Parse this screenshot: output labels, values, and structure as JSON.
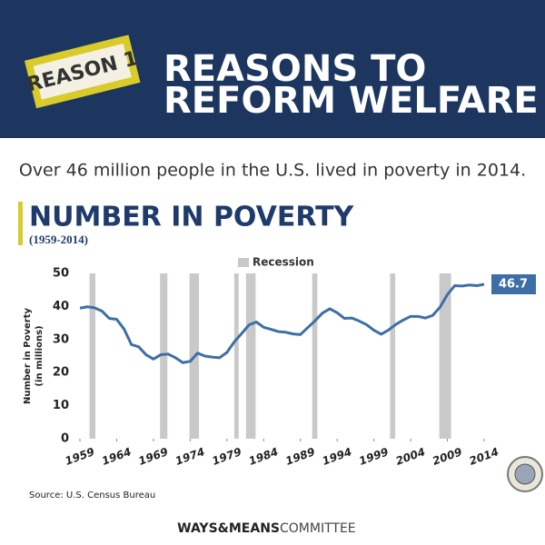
{
  "header": {
    "tag": "REASON 1",
    "title_lines": [
      "REASONS TO",
      "REFORM WELFARE"
    ]
  },
  "headline": "Over 46 million people in the U.S. lived in poverty in 2014.",
  "chart_data": {
    "type": "line",
    "title": "NUMBER IN POVERTY",
    "subtitle": "(1959-2014)",
    "ylabel": [
      "Number in Poverty",
      "(in millions)"
    ],
    "x": [
      1959,
      1960,
      1961,
      1962,
      1963,
      1964,
      1965,
      1966,
      1967,
      1968,
      1969,
      1970,
      1971,
      1972,
      1973,
      1974,
      1975,
      1976,
      1977,
      1978,
      1979,
      1980,
      1981,
      1982,
      1983,
      1984,
      1985,
      1986,
      1987,
      1988,
      1989,
      1990,
      1991,
      1992,
      1993,
      1994,
      1995,
      1996,
      1997,
      1998,
      1999,
      2000,
      2001,
      2002,
      2003,
      2004,
      2005,
      2006,
      2007,
      2008,
      2009,
      2010,
      2011,
      2012,
      2013,
      2014
    ],
    "series": [
      {
        "name": "Number in Poverty",
        "color": "#3d6fa6",
        "values": [
          39.5,
          39.9,
          39.6,
          38.6,
          36.4,
          36.1,
          33.2,
          28.5,
          27.8,
          25.4,
          24.1,
          25.4,
          25.6,
          24.5,
          23.0,
          23.4,
          25.9,
          25.0,
          24.7,
          24.5,
          26.1,
          29.3,
          31.8,
          34.4,
          35.3,
          33.7,
          33.1,
          32.4,
          32.2,
          31.7,
          31.5,
          33.6,
          35.7,
          38.0,
          39.3,
          38.1,
          36.4,
          36.5,
          35.6,
          34.5,
          32.8,
          31.6,
          32.9,
          34.6,
          35.9,
          37.0,
          37.0,
          36.5,
          37.3,
          39.8,
          43.6,
          46.3,
          46.2,
          46.5,
          46.3,
          46.7
        ]
      }
    ],
    "recessions": {
      "name": "Recession",
      "color": "#c9c9c9",
      "periods": [
        [
          1960.3,
          1961.1
        ],
        [
          1969.9,
          1970.9
        ],
        [
          1973.9,
          1975.2
        ],
        [
          1980.0,
          1980.6
        ],
        [
          1981.6,
          1982.9
        ],
        [
          1990.6,
          1991.3
        ],
        [
          2001.2,
          2001.9
        ],
        [
          2007.9,
          2009.5
        ]
      ]
    },
    "xlim": [
      1959,
      2014
    ],
    "xticks": [
      1959,
      1964,
      1969,
      1974,
      1979,
      1984,
      1989,
      1994,
      1999,
      2004,
      2009,
      2014
    ],
    "ylim": [
      0,
      50
    ],
    "yticks": [
      0,
      10,
      20,
      30,
      40,
      50
    ]
  },
  "source": "Source: U.S. Census Bureau",
  "footer": {
    "bold": "WAYS&MEANS",
    "light": "COMMITTEE"
  }
}
